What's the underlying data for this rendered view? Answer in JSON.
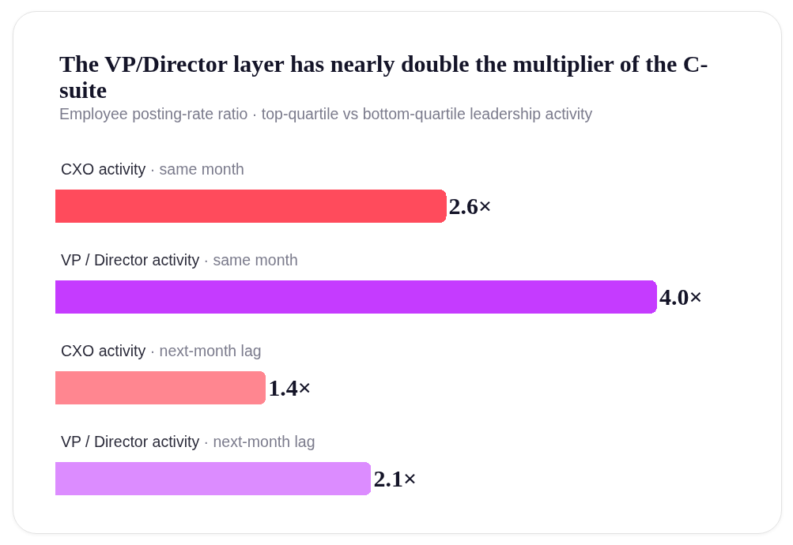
{
  "chart_data": {
    "type": "bar",
    "orientation": "horizontal",
    "title": "The VP/Director layer has nearly double the multiplier of the C-suite",
    "subtitle": "Employee posting-rate ratio · top-quartile vs bottom-quartile leadership activity",
    "categories": [
      "CXO activity · same month",
      "VP / Director activity · same month",
      "CXO activity · next-month lag",
      "VP / Director activity · next-month lag"
    ],
    "values": [
      2.6,
      4.0,
      1.4,
      2.1
    ],
    "colors": [
      "#ff4b5c",
      "#c53bff",
      "#ff8690",
      "#dc8cff"
    ],
    "value_labels": [
      "2.6×",
      "4.0×",
      "1.4×",
      "2.1×"
    ],
    "grid": false,
    "legend": false
  }
}
